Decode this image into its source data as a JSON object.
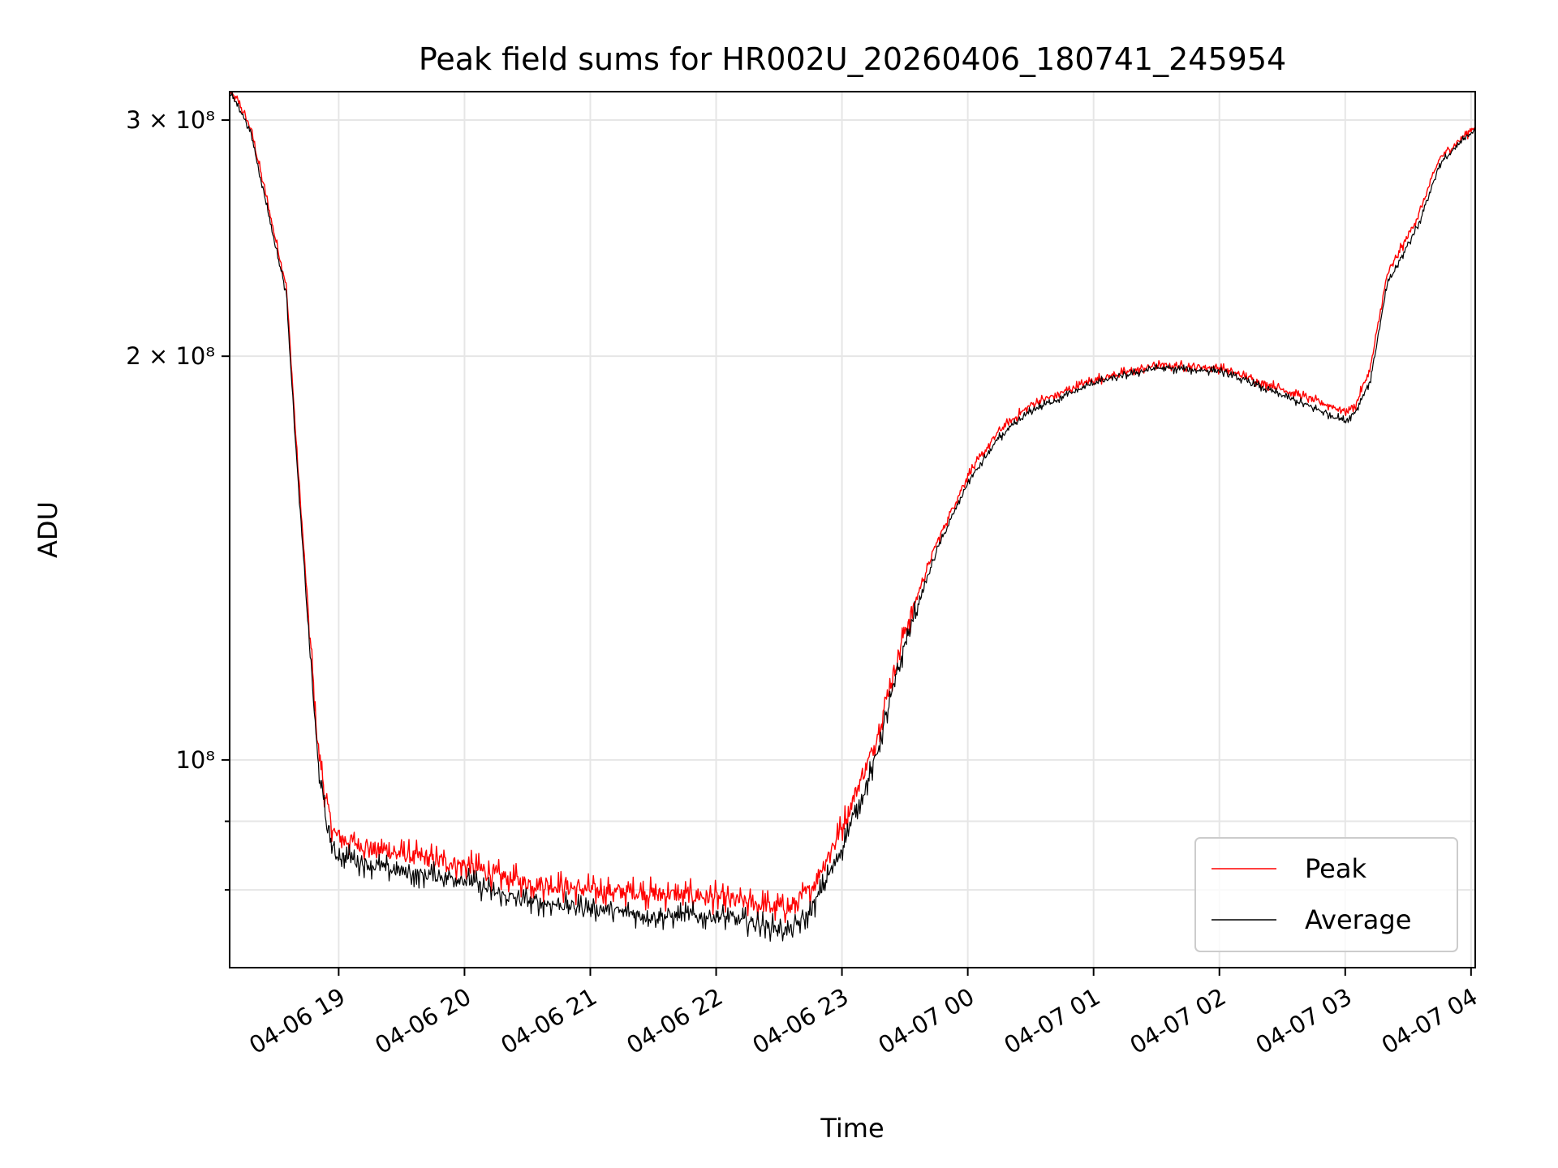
{
  "chart_data": {
    "type": "line",
    "title": "Peak field sums for HR002U_20260406_180741_245954",
    "xlabel": "Time",
    "ylabel": "ADU",
    "x_scale": "time",
    "y_scale": "log",
    "xlim": [
      "2026-04-06 18:08",
      "2026-04-07 04:02"
    ],
    "ylim": [
      70000000,
      315000000
    ],
    "x_ticks": [
      "04-06 19",
      "04-06 20",
      "04-06 21",
      "04-06 22",
      "04-06 23",
      "04-07 00",
      "04-07 01",
      "04-07 02",
      "04-07 03",
      "04-07 04"
    ],
    "x_tick_times": [
      "2026-04-06 19:00",
      "2026-04-06 20:00",
      "2026-04-06 21:00",
      "2026-04-06 22:00",
      "2026-04-06 23:00",
      "2026-04-07 00:00",
      "2026-04-07 01:00",
      "2026-04-07 02:00",
      "2026-04-07 03:00",
      "2026-04-07 04:00"
    ],
    "y_major_ticks": [
      {
        "value": 300000000,
        "label": "3 × 10⁸"
      },
      {
        "value": 200000000,
        "label": "2 × 10⁸"
      },
      {
        "value": 100000000,
        "label": "10⁸"
      }
    ],
    "y_minor_ticks": [
      90000000,
      80000000
    ],
    "grid": true,
    "legend_position": "lower right",
    "series": [
      {
        "name": "Peak",
        "color": "#ff0000",
        "noise": 0.03,
        "x": [
          "2026-04-06 18:08",
          "2026-04-06 18:12",
          "2026-04-06 18:18",
          "2026-04-06 18:25",
          "2026-04-06 18:30",
          "2026-04-06 18:35",
          "2026-04-06 18:40",
          "2026-04-06 18:45",
          "2026-04-06 18:50",
          "2026-04-06 18:54",
          "2026-04-06 18:58",
          "2026-04-06 19:05",
          "2026-04-06 19:15",
          "2026-04-06 19:30",
          "2026-04-06 20:00",
          "2026-04-06 20:15",
          "2026-04-06 20:30",
          "2026-04-06 21:00",
          "2026-04-06 21:30",
          "2026-04-06 22:00",
          "2026-04-06 22:20",
          "2026-04-06 22:35",
          "2026-04-06 22:45",
          "2026-04-06 23:00",
          "2026-04-06 23:15",
          "2026-04-06 23:30",
          "2026-04-06 23:45",
          "2026-04-07 00:00",
          "2026-04-07 00:15",
          "2026-04-07 00:30",
          "2026-04-07 01:00",
          "2026-04-07 01:30",
          "2026-04-07 02:00",
          "2026-04-07 02:30",
          "2026-04-07 03:00",
          "2026-04-07 03:05",
          "2026-04-07 03:12",
          "2026-04-07 03:20",
          "2026-04-07 03:25",
          "2026-04-07 03:35",
          "2026-04-07 03:45",
          "2026-04-07 04:02"
        ],
        "y": [
          315000000,
          310000000,
          296000000,
          265000000,
          244000000,
          226000000,
          170000000,
          132000000,
          103000000,
          93000000,
          88000000,
          87000000,
          86000000,
          85000000,
          83500000,
          82000000,
          81000000,
          80000000,
          79500000,
          79000000,
          78000000,
          77500000,
          80000000,
          89000000,
          102000000,
          125000000,
          145000000,
          163000000,
          176000000,
          184000000,
          192000000,
          197000000,
          196000000,
          189000000,
          182000000,
          184000000,
          196000000,
          230000000,
          238000000,
          255000000,
          281000000,
          297000000
        ]
      },
      {
        "name": "Average",
        "color": "#000000",
        "noise": 0.025,
        "x": [
          "2026-04-06 18:08",
          "2026-04-06 18:12",
          "2026-04-06 18:18",
          "2026-04-06 18:25",
          "2026-04-06 18:30",
          "2026-04-06 18:35",
          "2026-04-06 18:40",
          "2026-04-06 18:45",
          "2026-04-06 18:50",
          "2026-04-06 18:54",
          "2026-04-06 18:58",
          "2026-04-06 19:05",
          "2026-04-06 19:15",
          "2026-04-06 19:30",
          "2026-04-06 20:00",
          "2026-04-06 20:15",
          "2026-04-06 20:30",
          "2026-04-06 21:00",
          "2026-04-06 21:30",
          "2026-04-06 22:00",
          "2026-04-06 22:20",
          "2026-04-06 22:35",
          "2026-04-06 22:45",
          "2026-04-06 23:00",
          "2026-04-06 23:15",
          "2026-04-06 23:30",
          "2026-04-06 23:45",
          "2026-04-07 00:00",
          "2026-04-07 00:15",
          "2026-04-07 00:30",
          "2026-04-07 01:00",
          "2026-04-07 01:30",
          "2026-04-07 02:00",
          "2026-04-07 02:30",
          "2026-04-07 03:00",
          "2026-04-07 03:05",
          "2026-04-07 03:12",
          "2026-04-07 03:20",
          "2026-04-07 03:25",
          "2026-04-07 03:35",
          "2026-04-07 03:45",
          "2026-04-07 04:02"
        ],
        "y": [
          314000000,
          308000000,
          294000000,
          262000000,
          241000000,
          223000000,
          167000000,
          129000000,
          100000000,
          90000000,
          85000000,
          84500000,
          83500000,
          82500000,
          81500000,
          79500000,
          78500000,
          77500000,
          76500000,
          76500000,
          75500000,
          74500000,
          77000000,
          86000000,
          99000000,
          122000000,
          143000000,
          161000000,
          174000000,
          182000000,
          191000000,
          196000000,
          195000000,
          187000000,
          179000000,
          182000000,
          192000000,
          226000000,
          234000000,
          251000000,
          278000000,
          296000000
        ]
      }
    ]
  }
}
